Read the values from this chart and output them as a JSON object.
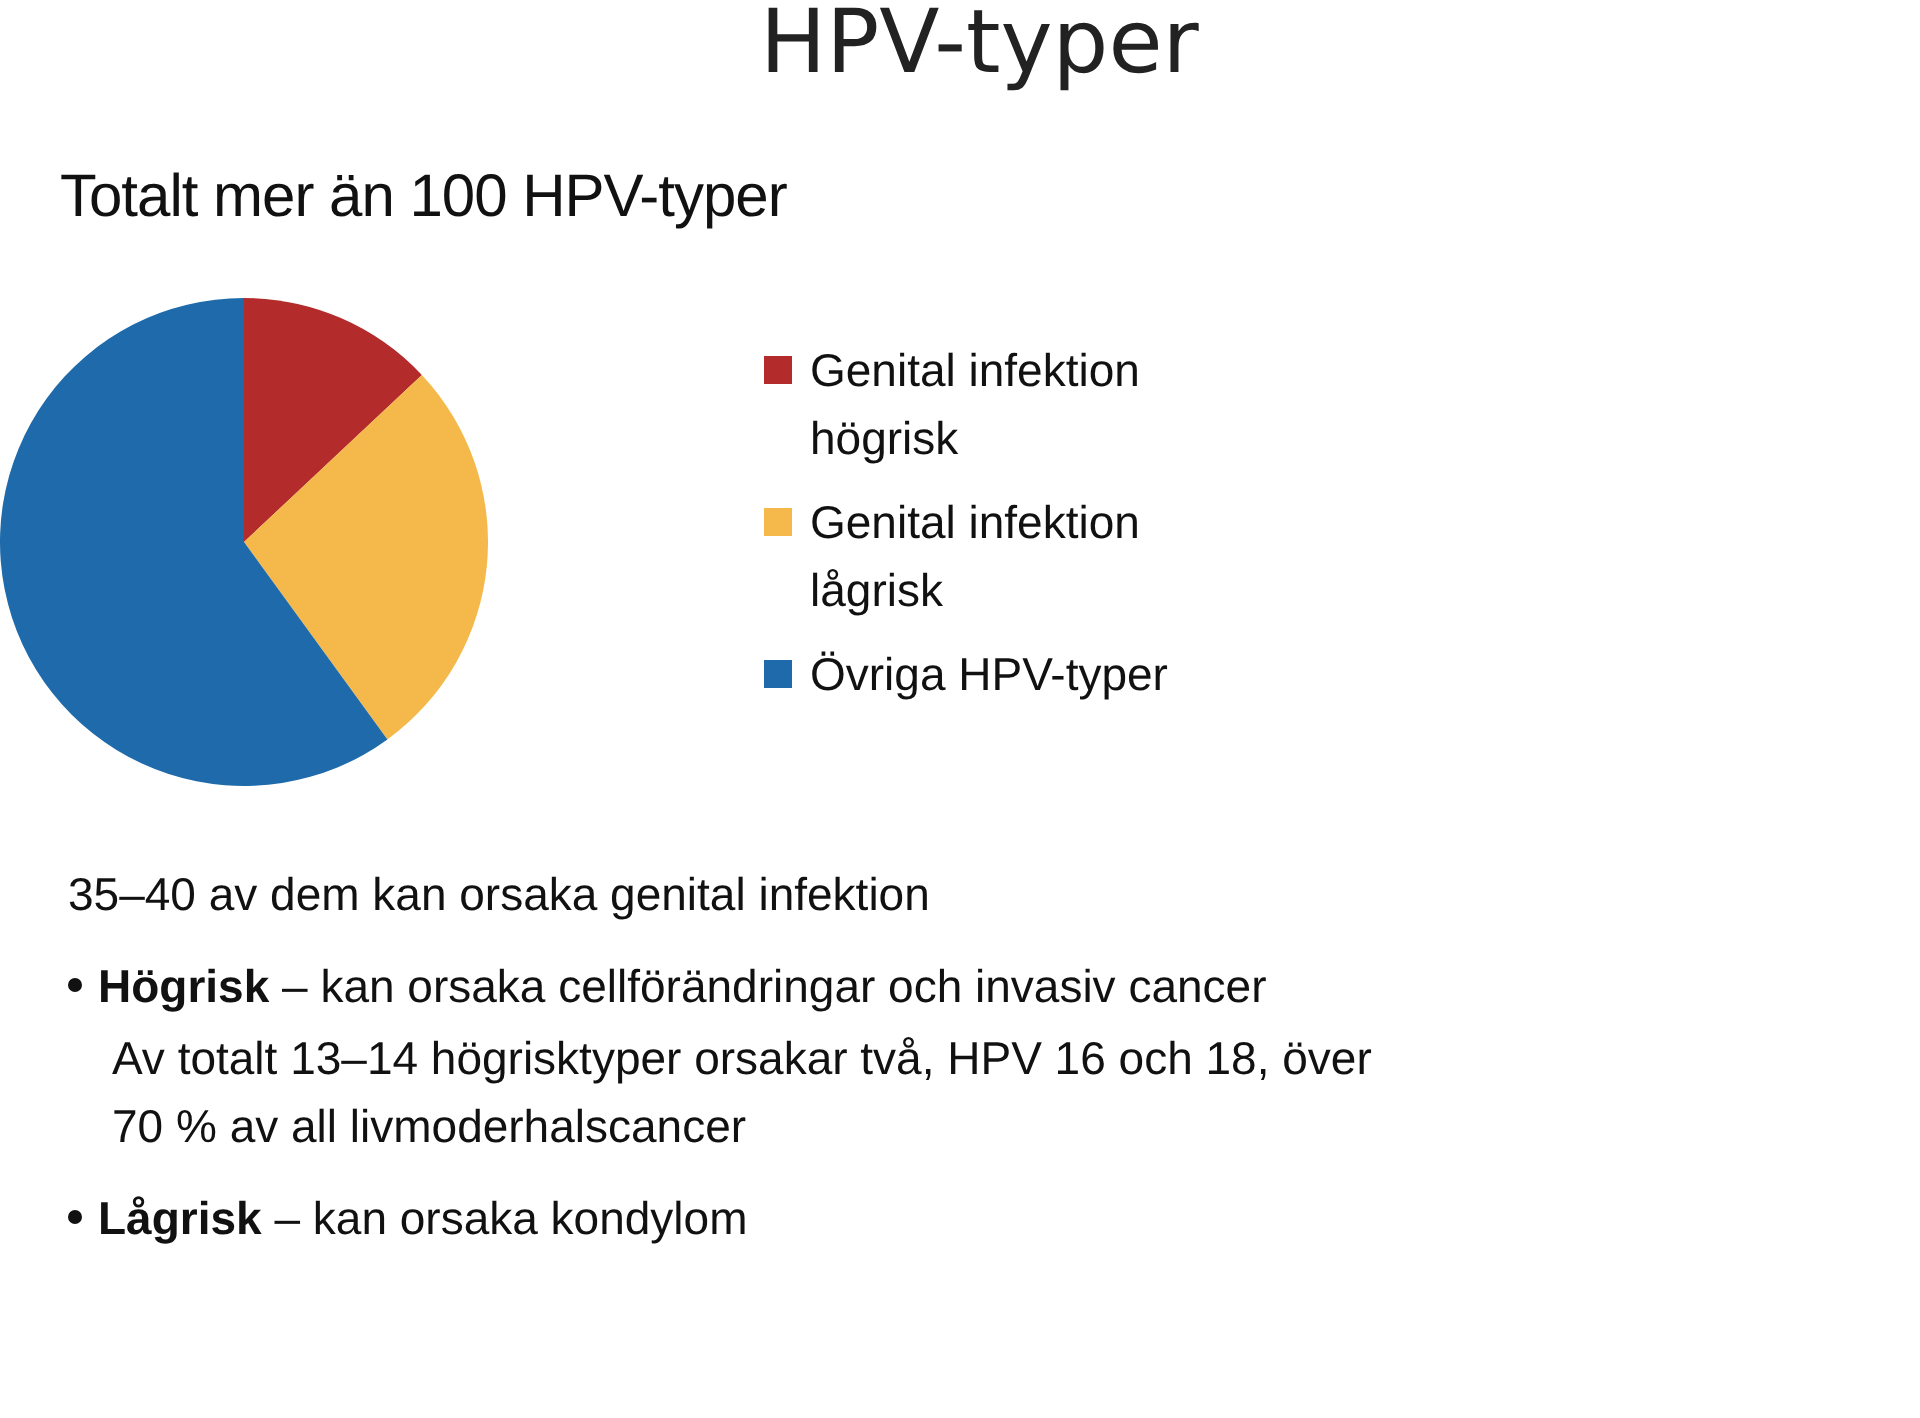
{
  "chart_data": {
    "type": "pie",
    "title": "HPV-typer",
    "subtitle": "Totalt mer än 100 HPV-typer",
    "categories": [
      "Genital infektion högrisk",
      "Genital infektion lågrisk",
      "Övriga HPV-typer"
    ],
    "values": [
      13,
      27,
      60
    ],
    "colors": [
      "#b42b2b",
      "#f5b94b",
      "#1f6aaa"
    ],
    "legend": "right",
    "annotations": [
      "35–40 av dem kan orsaka genital infektion",
      "Högrisk – kan orsaka cellförändringar och invasiv cancer",
      "Av totalt 13–14 högrisktyper orsakar två, HPV 16 och 18, över 70 % av all livmoderhalscancer",
      "Lågrisk – kan orsaka kondylom"
    ]
  }
}
